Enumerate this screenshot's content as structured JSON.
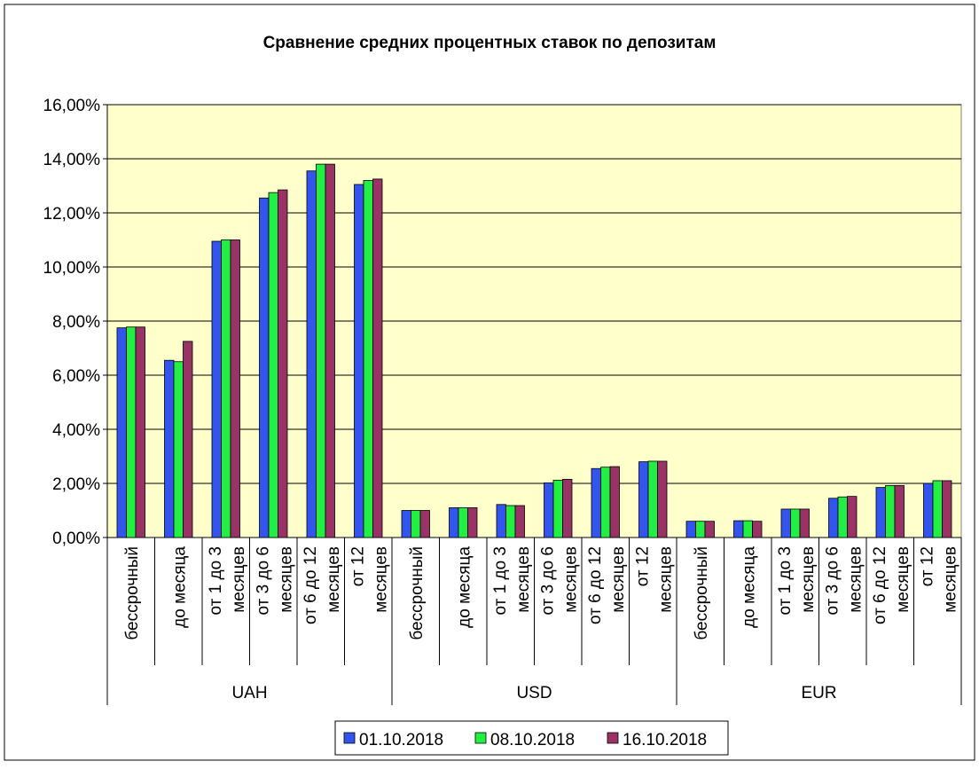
{
  "chart_data": {
    "type": "bar",
    "title": "Сравнение средних процентных ставок по депозитам",
    "groups": [
      {
        "name": "UAH",
        "categories": [
          [
            "бессрочный"
          ],
          [
            "до месяца"
          ],
          [
            "от 1 до 3",
            "месяцев"
          ],
          [
            "от 3 до 6",
            "месяцев"
          ],
          [
            "от 6 до 12",
            "месяцев"
          ],
          [
            "от 12",
            "месяцев"
          ]
        ]
      },
      {
        "name": "USD",
        "categories": [
          [
            "бессрочный"
          ],
          [
            "до месяца"
          ],
          [
            "от 1 до 3",
            "месяцев"
          ],
          [
            "от 3 до 6",
            "месяцев"
          ],
          [
            "от 6 до 12",
            "месяцев"
          ],
          [
            "от 12",
            "месяцев"
          ]
        ]
      },
      {
        "name": "EUR",
        "categories": [
          [
            "бессрочный"
          ],
          [
            "до месяца"
          ],
          [
            "от 1 до 3",
            "месяцев"
          ],
          [
            "от 3 до 6",
            "месяцев"
          ],
          [
            "от 6 до 12",
            "месяцев"
          ],
          [
            "от 12",
            "месяцев"
          ]
        ]
      }
    ],
    "series": [
      {
        "name": "01.10.2018",
        "color": "#3355ee",
        "values": [
          7.75,
          6.55,
          10.95,
          12.55,
          13.55,
          13.05,
          1.0,
          1.1,
          1.22,
          2.02,
          2.55,
          2.8,
          0.6,
          0.62,
          1.05,
          1.45,
          1.85,
          2.0
        ]
      },
      {
        "name": "08.10.2018",
        "color": "#22ee44",
        "values": [
          7.78,
          6.5,
          11.0,
          12.75,
          13.8,
          13.2,
          1.0,
          1.1,
          1.18,
          2.12,
          2.6,
          2.82,
          0.6,
          0.62,
          1.05,
          1.5,
          1.92,
          2.1
        ]
      },
      {
        "name": "16.10.2018",
        "color": "#993366",
        "values": [
          7.78,
          7.25,
          11.0,
          12.85,
          13.8,
          13.25,
          1.0,
          1.1,
          1.18,
          2.15,
          2.62,
          2.82,
          0.6,
          0.6,
          1.05,
          1.52,
          1.92,
          2.1
        ]
      }
    ],
    "yticks": [
      "0,00%",
      "2,00%",
      "4,00%",
      "6,00%",
      "8,00%",
      "10,00%",
      "12,00%",
      "14,00%",
      "16,00%"
    ],
    "ylim": [
      0,
      16
    ],
    "grid": true,
    "legend": "bottom",
    "plot_background": "#ffffcc"
  }
}
